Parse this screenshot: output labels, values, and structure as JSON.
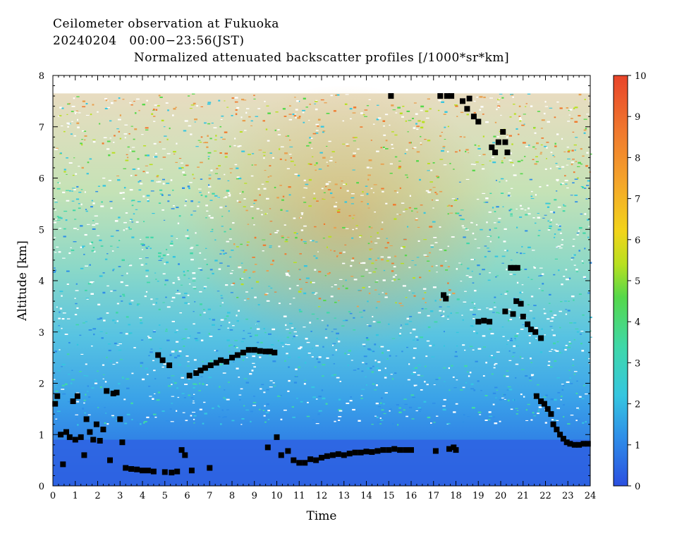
{
  "header": {
    "title": "Ceilometer observation at Fukuoka",
    "date_range": "20240204   00:00−23:56(JST)",
    "product": "Normalized attenuated backscatter profiles [/1000*sr*km]"
  },
  "chart_data": {
    "type": "heatmap",
    "xlabel": "Time",
    "ylabel": "Altitude [km]",
    "xlim": [
      0,
      24
    ],
    "ylim": [
      0,
      8
    ],
    "x_ticks": [
      "0",
      "1",
      "2",
      "3",
      "4",
      "5",
      "6",
      "7",
      "8",
      "9",
      "10",
      "11",
      "12",
      "13",
      "14",
      "15",
      "16",
      "17",
      "18",
      "19",
      "20",
      "21",
      "22",
      "23",
      "24"
    ],
    "y_ticks": [
      "0",
      "1",
      "2",
      "3",
      "4",
      "5",
      "6",
      "7",
      "8"
    ],
    "colorbar": {
      "range": [
        0,
        10
      ],
      "ticks": [
        "0",
        "1",
        "2",
        "3",
        "4",
        "5",
        "6",
        "7",
        "8",
        "9",
        "10"
      ],
      "colors": [
        "#2b4fe0",
        "#2f8fe8",
        "#35c6e0",
        "#3fd8a8",
        "#55d84a",
        "#b8e020",
        "#f2d41a",
        "#f4a52a",
        "#f07a2e",
        "#e8442a"
      ]
    },
    "data_top_km": 7.65,
    "cloud_base_markers": [
      {
        "t": 0.1,
        "h": 1.6
      },
      {
        "t": 0.2,
        "h": 1.75
      },
      {
        "t": 0.35,
        "h": 1.0
      },
      {
        "t": 0.45,
        "h": 0.42
      },
      {
        "t": 0.6,
        "h": 1.05
      },
      {
        "t": 0.75,
        "h": 0.95
      },
      {
        "t": 0.9,
        "h": 1.65
      },
      {
        "t": 1.0,
        "h": 0.9
      },
      {
        "t": 1.1,
        "h": 1.75
      },
      {
        "t": 1.25,
        "h": 0.95
      },
      {
        "t": 1.4,
        "h": 0.6
      },
      {
        "t": 1.5,
        "h": 1.3
      },
      {
        "t": 1.65,
        "h": 1.05
      },
      {
        "t": 1.8,
        "h": 0.9
      },
      {
        "t": 1.95,
        "h": 1.2
      },
      {
        "t": 2.1,
        "h": 0.88
      },
      {
        "t": 2.25,
        "h": 1.1
      },
      {
        "t": 2.4,
        "h": 1.85
      },
      {
        "t": 2.55,
        "h": 0.5
      },
      {
        "t": 2.7,
        "h": 1.8
      },
      {
        "t": 2.85,
        "h": 1.82
      },
      {
        "t": 3.0,
        "h": 1.3
      },
      {
        "t": 3.1,
        "h": 0.85
      },
      {
        "t": 3.25,
        "h": 0.35
      },
      {
        "t": 3.5,
        "h": 0.33
      },
      {
        "t": 3.75,
        "h": 0.32
      },
      {
        "t": 4.0,
        "h": 0.3
      },
      {
        "t": 4.25,
        "h": 0.3
      },
      {
        "t": 4.5,
        "h": 0.28
      },
      {
        "t": 4.7,
        "h": 2.55
      },
      {
        "t": 4.9,
        "h": 2.45
      },
      {
        "t": 5.0,
        "h": 0.27
      },
      {
        "t": 5.2,
        "h": 2.35
      },
      {
        "t": 5.3,
        "h": 0.26
      },
      {
        "t": 5.55,
        "h": 0.28
      },
      {
        "t": 5.75,
        "h": 0.7
      },
      {
        "t": 5.9,
        "h": 0.6
      },
      {
        "t": 6.1,
        "h": 2.15
      },
      {
        "t": 6.2,
        "h": 0.3
      },
      {
        "t": 6.4,
        "h": 2.2
      },
      {
        "t": 6.6,
        "h": 2.25
      },
      {
        "t": 6.8,
        "h": 2.3
      },
      {
        "t": 7.0,
        "h": 0.35
      },
      {
        "t": 7.05,
        "h": 2.35
      },
      {
        "t": 7.3,
        "h": 2.4
      },
      {
        "t": 7.5,
        "h": 2.45
      },
      {
        "t": 7.75,
        "h": 2.42
      },
      {
        "t": 8.0,
        "h": 2.5
      },
      {
        "t": 8.25,
        "h": 2.55
      },
      {
        "t": 8.5,
        "h": 2.6
      },
      {
        "t": 8.75,
        "h": 2.65
      },
      {
        "t": 9.0,
        "h": 2.65
      },
      {
        "t": 9.25,
        "h": 2.63
      },
      {
        "t": 9.5,
        "h": 2.62
      },
      {
        "t": 9.7,
        "h": 2.62
      },
      {
        "t": 9.9,
        "h": 2.6
      },
      {
        "t": 9.6,
        "h": 0.75
      },
      {
        "t": 10.0,
        "h": 0.95
      },
      {
        "t": 10.2,
        "h": 0.6
      },
      {
        "t": 10.5,
        "h": 0.68
      },
      {
        "t": 10.75,
        "h": 0.5
      },
      {
        "t": 11.0,
        "h": 0.45
      },
      {
        "t": 11.25,
        "h": 0.45
      },
      {
        "t": 11.5,
        "h": 0.52
      },
      {
        "t": 11.75,
        "h": 0.5
      },
      {
        "t": 12.0,
        "h": 0.55
      },
      {
        "t": 12.25,
        "h": 0.58
      },
      {
        "t": 12.5,
        "h": 0.6
      },
      {
        "t": 12.75,
        "h": 0.62
      },
      {
        "t": 13.0,
        "h": 0.6
      },
      {
        "t": 13.25,
        "h": 0.63
      },
      {
        "t": 13.5,
        "h": 0.65
      },
      {
        "t": 13.75,
        "h": 0.65
      },
      {
        "t": 14.0,
        "h": 0.67
      },
      {
        "t": 14.25,
        "h": 0.66
      },
      {
        "t": 14.5,
        "h": 0.68
      },
      {
        "t": 14.75,
        "h": 0.7
      },
      {
        "t": 15.0,
        "h": 0.7
      },
      {
        "t": 15.25,
        "h": 0.72
      },
      {
        "t": 15.5,
        "h": 0.7
      },
      {
        "t": 15.75,
        "h": 0.7
      },
      {
        "t": 16.0,
        "h": 0.7
      },
      {
        "t": 17.1,
        "h": 0.68
      },
      {
        "t": 17.7,
        "h": 0.72
      },
      {
        "t": 17.9,
        "h": 0.75
      },
      {
        "t": 18.0,
        "h": 0.7
      },
      {
        "t": 15.1,
        "h": 7.6
      },
      {
        "t": 17.3,
        "h": 7.6
      },
      {
        "t": 17.6,
        "h": 7.6
      },
      {
        "t": 17.8,
        "h": 7.6
      },
      {
        "t": 18.3,
        "h": 7.5
      },
      {
        "t": 18.5,
        "h": 7.35
      },
      {
        "t": 18.6,
        "h": 7.55
      },
      {
        "t": 18.8,
        "h": 7.2
      },
      {
        "t": 19.0,
        "h": 7.1
      },
      {
        "t": 17.45,
        "h": 3.72
      },
      {
        "t": 17.55,
        "h": 3.65
      },
      {
        "t": 19.0,
        "h": 3.2
      },
      {
        "t": 19.25,
        "h": 3.22
      },
      {
        "t": 19.5,
        "h": 3.2
      },
      {
        "t": 19.6,
        "h": 6.6
      },
      {
        "t": 19.75,
        "h": 6.5
      },
      {
        "t": 19.9,
        "h": 6.7
      },
      {
        "t": 20.1,
        "h": 6.9
      },
      {
        "t": 20.2,
        "h": 6.7
      },
      {
        "t": 20.3,
        "h": 6.5
      },
      {
        "t": 20.45,
        "h": 4.25
      },
      {
        "t": 20.6,
        "h": 4.25
      },
      {
        "t": 20.75,
        "h": 4.25
      },
      {
        "t": 20.2,
        "h": 3.4
      },
      {
        "t": 20.55,
        "h": 3.35
      },
      {
        "t": 20.7,
        "h": 3.6
      },
      {
        "t": 20.9,
        "h": 3.55
      },
      {
        "t": 21.0,
        "h": 3.3
      },
      {
        "t": 21.2,
        "h": 3.15
      },
      {
        "t": 21.35,
        "h": 3.05
      },
      {
        "t": 21.55,
        "h": 3.0
      },
      {
        "t": 21.8,
        "h": 2.88
      },
      {
        "t": 21.6,
        "h": 1.75
      },
      {
        "t": 21.8,
        "h": 1.65
      },
      {
        "t": 21.95,
        "h": 1.6
      },
      {
        "t": 22.1,
        "h": 1.5
      },
      {
        "t": 22.25,
        "h": 1.4
      },
      {
        "t": 22.35,
        "h": 1.2
      },
      {
        "t": 22.5,
        "h": 1.1
      },
      {
        "t": 22.65,
        "h": 1.0
      },
      {
        "t": 22.8,
        "h": 0.92
      },
      {
        "t": 22.95,
        "h": 0.85
      },
      {
        "t": 23.1,
        "h": 0.82
      },
      {
        "t": 23.3,
        "h": 0.8
      },
      {
        "t": 23.5,
        "h": 0.8
      },
      {
        "t": 23.7,
        "h": 0.82
      },
      {
        "t": 23.9,
        "h": 0.82
      }
    ]
  }
}
